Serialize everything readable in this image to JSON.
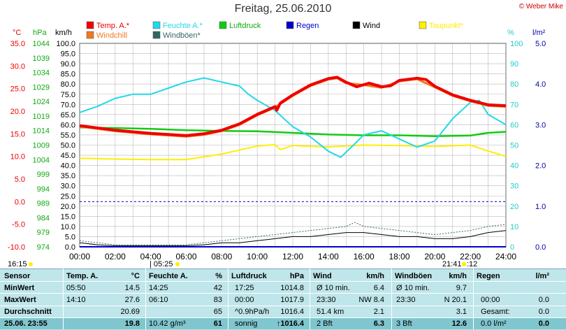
{
  "title": "Freitag, 25.06.2010",
  "copyright": "© Weber Mike",
  "axis_labels": {
    "degc": "°C",
    "hpa": "hPa",
    "kmh": "km/h",
    "pct": "%",
    "lm2": "l/m²"
  },
  "legend": [
    {
      "name": "Temp. A.*",
      "color": "#ee0000"
    },
    {
      "name": "Feuchte A.*",
      "color": "#22d8e8"
    },
    {
      "name": "Luftdruck",
      "color": "#11cc11"
    },
    {
      "name": "Regen",
      "color": "#0000cc"
    },
    {
      "name": "Wind",
      "color": "#000000"
    },
    {
      "name": "Taupunkt*",
      "color": "#ffee00"
    },
    {
      "name": "Windchill",
      "color": "#f07820"
    },
    {
      "name": "Windböen*",
      "color": "#336666"
    }
  ],
  "marks": {
    "sunrise": "05:25",
    "sunset": "21:41",
    "time_left": "16:15",
    "moon": "12"
  },
  "chart_data": {
    "type": "line",
    "x_ticks": [
      "00:00",
      "02:00",
      "04:00",
      "06:00",
      "08:00",
      "10:00",
      "12:00",
      "14:00",
      "16:00",
      "18:00",
      "20:00",
      "22:00",
      "24:00"
    ],
    "axes": {
      "temp_c": {
        "range": [
          -10,
          35
        ],
        "ticks": [
          "35.0",
          "30.0",
          "25.0",
          "20.0",
          "15.0",
          "10.0",
          "5.0",
          "0.0",
          "-5.0",
          "-10.0"
        ]
      },
      "pressure_hpa": {
        "range": [
          974,
          1049
        ],
        "ticks": [
          "1044",
          "1039",
          "1034",
          "1029",
          "1024",
          "1019",
          "1014",
          "1009",
          "1004",
          "999",
          "994",
          "989",
          "984",
          "979",
          "974"
        ]
      },
      "wind_kmh": {
        "range": [
          0,
          100
        ],
        "ticks": [
          "100.0",
          "95.0",
          "90.0",
          "85.0",
          "80.0",
          "75.0",
          "70.0",
          "65.0",
          "60.0",
          "55.0",
          "50.0",
          "45.0",
          "40.0",
          "35.0",
          "30.0",
          "25.0",
          "20.0",
          "15.0",
          "10.0",
          "5.0",
          "0.0"
        ]
      },
      "humidity_pct": {
        "range": [
          0,
          100
        ],
        "ticks": [
          "100",
          "90",
          "80",
          "70",
          "60",
          "50",
          "40",
          "30",
          "20",
          "10",
          "0"
        ]
      },
      "rain_lm2": {
        "range": [
          0,
          5
        ],
        "ticks": [
          "5.0",
          "4.0",
          "3.0",
          "2.0",
          "1.0",
          "0.0"
        ]
      }
    },
    "series": [
      {
        "name": "Temp. A.*",
        "axis": "temp_c",
        "points": [
          [
            0,
            16.8
          ],
          [
            2,
            15.8
          ],
          [
            4,
            15.1
          ],
          [
            6,
            14.6
          ],
          [
            7,
            15.0
          ],
          [
            8,
            15.8
          ],
          [
            9,
            17.2
          ],
          [
            10,
            19.3
          ],
          [
            11,
            21.0
          ],
          [
            11.1,
            20.2
          ],
          [
            11.3,
            21.8
          ],
          [
            12,
            23.6
          ],
          [
            13,
            25.8
          ],
          [
            14,
            27.2
          ],
          [
            14.5,
            27.5
          ],
          [
            15,
            26.4
          ],
          [
            15.6,
            25.4
          ],
          [
            16.3,
            26.2
          ],
          [
            17,
            25.4
          ],
          [
            17.5,
            25.6
          ],
          [
            18,
            26.8
          ],
          [
            19,
            27.3
          ],
          [
            19.5,
            27.0
          ],
          [
            20,
            25.5
          ],
          [
            21,
            23.6
          ],
          [
            22,
            22.4
          ],
          [
            23,
            21.4
          ],
          [
            24,
            21.2
          ]
        ]
      },
      {
        "name": "Windchill",
        "axis": "temp_c",
        "points": [
          [
            0,
            16.6
          ],
          [
            2,
            15.6
          ],
          [
            4,
            14.9
          ],
          [
            6,
            14.4
          ],
          [
            7,
            14.8
          ],
          [
            8,
            15.6
          ],
          [
            9,
            17.0
          ],
          [
            10,
            19.1
          ],
          [
            11,
            20.8
          ],
          [
            12,
            23.4
          ],
          [
            13,
            25.6
          ],
          [
            14,
            27.0
          ],
          [
            14.5,
            27.3
          ],
          [
            15,
            26.2
          ],
          [
            16,
            25.8
          ],
          [
            17,
            25.2
          ],
          [
            18,
            26.6
          ],
          [
            19,
            27.1
          ],
          [
            20,
            25.3
          ],
          [
            21,
            23.4
          ],
          [
            22,
            22.2
          ],
          [
            23,
            21.2
          ],
          [
            24,
            21.0
          ]
        ]
      },
      {
        "name": "Feuchte A.*",
        "axis": "humidity_pct",
        "points": [
          [
            0,
            66
          ],
          [
            1,
            69
          ],
          [
            2,
            73
          ],
          [
            3,
            75
          ],
          [
            4,
            75
          ],
          [
            5,
            78
          ],
          [
            6,
            81
          ],
          [
            7,
            83
          ],
          [
            8,
            81
          ],
          [
            9,
            79
          ],
          [
            9.5,
            75
          ],
          [
            10,
            72
          ],
          [
            11,
            67
          ],
          [
            12,
            59
          ],
          [
            13,
            54
          ],
          [
            14,
            47
          ],
          [
            14.7,
            44
          ],
          [
            15.3,
            49
          ],
          [
            16,
            55
          ],
          [
            17,
            57
          ],
          [
            18,
            53
          ],
          [
            19,
            49
          ],
          [
            20,
            52
          ],
          [
            21,
            63
          ],
          [
            22,
            71
          ],
          [
            22.5,
            72
          ],
          [
            23,
            65
          ],
          [
            24,
            60
          ]
        ]
      },
      {
        "name": "Luftdruck",
        "axis": "pressure_hpa",
        "points": [
          [
            0,
            1018.0
          ],
          [
            2,
            1017.8
          ],
          [
            4,
            1017.5
          ],
          [
            6,
            1017.0
          ],
          [
            8,
            1016.7
          ],
          [
            10,
            1016.6
          ],
          [
            12,
            1016.0
          ],
          [
            14,
            1015.4
          ],
          [
            16,
            1015.1
          ],
          [
            18,
            1015.1
          ],
          [
            20,
            1014.8
          ],
          [
            22,
            1015.0
          ],
          [
            23,
            1016.0
          ],
          [
            24,
            1016.4
          ]
        ]
      },
      {
        "name": "Taupunkt*",
        "axis": "temp_c",
        "points": [
          [
            0,
            9.6
          ],
          [
            2,
            9.4
          ],
          [
            4,
            9.3
          ],
          [
            6,
            9.3
          ],
          [
            8,
            10.5
          ],
          [
            10,
            12.3
          ],
          [
            11,
            12.6
          ],
          [
            11.3,
            11.5
          ],
          [
            12,
            12.4
          ],
          [
            14,
            12.1
          ],
          [
            16,
            12.5
          ],
          [
            18,
            12.4
          ],
          [
            20,
            12.2
          ],
          [
            22,
            12.5
          ],
          [
            23,
            11.2
          ],
          [
            24,
            10.0
          ]
        ]
      },
      {
        "name": "Wind",
        "axis": "wind_kmh",
        "points": [
          [
            0,
            2
          ],
          [
            1,
            1
          ],
          [
            2,
            0.5
          ],
          [
            4,
            0.5
          ],
          [
            6,
            0.5
          ],
          [
            7,
            1
          ],
          [
            8,
            2
          ],
          [
            9,
            2
          ],
          [
            10,
            3
          ],
          [
            11,
            4
          ],
          [
            12,
            5
          ],
          [
            13,
            5
          ],
          [
            14,
            6
          ],
          [
            15,
            7
          ],
          [
            16,
            7
          ],
          [
            17,
            6
          ],
          [
            18,
            5
          ],
          [
            19,
            5
          ],
          [
            20,
            4
          ],
          [
            21,
            4
          ],
          [
            22,
            5
          ],
          [
            23,
            7
          ],
          [
            24,
            8
          ]
        ]
      },
      {
        "name": "Windböen*",
        "axis": "wind_kmh",
        "points": [
          [
            0,
            3
          ],
          [
            2,
            1
          ],
          [
            4,
            1
          ],
          [
            6,
            1
          ],
          [
            8,
            3
          ],
          [
            10,
            5
          ],
          [
            12,
            7
          ],
          [
            13,
            8
          ],
          [
            14,
            9
          ],
          [
            15,
            10
          ],
          [
            15.5,
            12
          ],
          [
            16,
            10
          ],
          [
            18,
            8
          ],
          [
            20,
            6
          ],
          [
            22,
            8
          ],
          [
            23,
            10
          ],
          [
            24,
            11
          ]
        ]
      },
      {
        "name": "Regen",
        "axis": "rain_lm2",
        "points": [
          [
            0,
            0
          ],
          [
            24,
            0
          ]
        ]
      }
    ],
    "reference_line": {
      "axis": "temp_c",
      "value": 0
    }
  },
  "table": {
    "headers": [
      "Sensor",
      "Temp. A.",
      "°C",
      "Feuchte A.",
      "%",
      "Luftdruck",
      "hPa",
      "Wind",
      "km/h",
      "Windböen",
      "km/h",
      "Regen",
      "l/m²"
    ],
    "rows": [
      {
        "label": "MinWert",
        "cols": [
          "05:50",
          "14.5",
          "14:25",
          "42",
          "17:25",
          "1014.8",
          "Ø 10 min.",
          "6.4",
          "Ø 10 min.",
          "9.7",
          "",
          ""
        ]
      },
      {
        "label": "MaxWert",
        "cols": [
          "14:10",
          "27.6",
          "06:10",
          "83",
          "00:00",
          "1017.9",
          "23:30",
          "NW 8.4",
          "23:30",
          "N 20.1",
          "00:00",
          "0.0"
        ]
      },
      {
        "label": "Durchschnitt",
        "cols": [
          "",
          "20.69",
          "",
          "65",
          "^0.9hPa/h",
          "1016.4",
          "51.4 km",
          "2.1",
          "",
          "3.1",
          "Gesamt:",
          "0.0"
        ]
      }
    ],
    "current": {
      "label": "25.06. 23:55",
      "cols": [
        "",
        "19.8",
        "10.42 g/m³",
        "61",
        "sonnig",
        "↑1016.4",
        "2 Bft",
        "6.3",
        "3 Bft",
        "12.6",
        "0.0 l/m²",
        "0.0"
      ]
    }
  }
}
